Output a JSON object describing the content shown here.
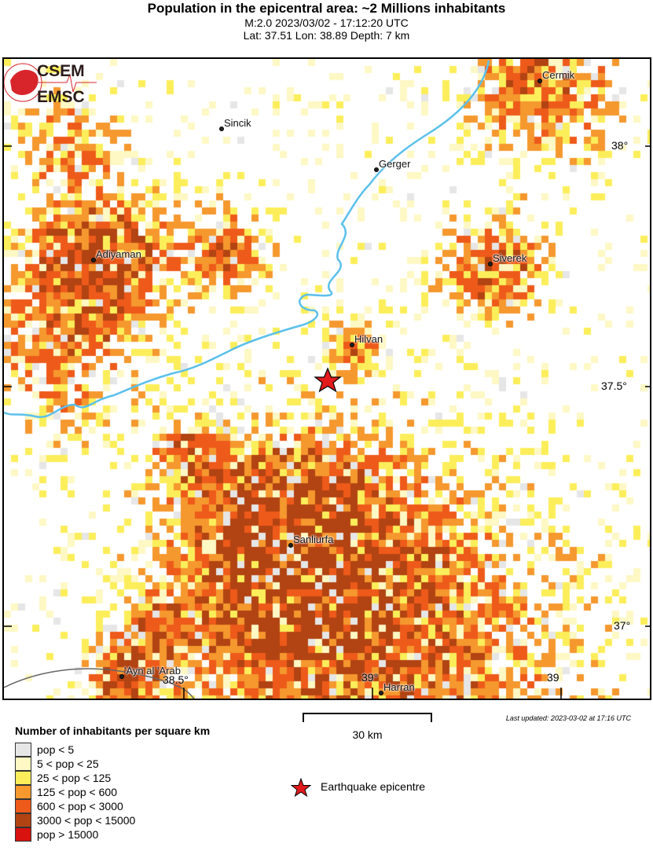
{
  "header": {
    "title": "Population in the epicentral area: ~2 Millions inhabitants",
    "subtitle": "M:2.0 2023/03/02 - 17:12:20 UTC",
    "location": "Lat: 37.51 Lon: 38.89 Depth: 7 km"
  },
  "map": {
    "cities": [
      "Cermik",
      "Sincik",
      "Gerger",
      "Adiyaman",
      "Siverek",
      "Hilvan",
      "Sanliurfa",
      "'Ayn al 'Arab",
      "Harran"
    ],
    "lat_ticks": [
      "38°",
      "37.5°",
      "37°"
    ],
    "lon_ticks": [
      "38.5°",
      "39°",
      "39"
    ],
    "river_color": "#5bc0eb",
    "epicenter_color": "#e31a1c"
  },
  "scale": {
    "label": "30 km"
  },
  "updated": "Last updated: 2023-03-02 at 17:16 UTC",
  "logo": {
    "top": "CSEM",
    "bottom": "EMSC"
  },
  "legend": {
    "title": "Number of inhabitants per square km",
    "items": [
      {
        "label": "pop < 5",
        "color": "#e6e6e6"
      },
      {
        "label": "5 < pop < 25",
        "color": "#fdf8c4"
      },
      {
        "label": "25 < pop < 125",
        "color": "#fbee5a"
      },
      {
        "label": "125 < pop < 600",
        "color": "#f5982e"
      },
      {
        "label": "600 < pop < 3000",
        "color": "#ee5a1a"
      },
      {
        "label": "3000 < pop < 15000",
        "color": "#b24312"
      },
      {
        "label": "pop > 15000",
        "color": "#d7120f"
      }
    ],
    "epicentre_label": "Earthquake epicentre"
  }
}
